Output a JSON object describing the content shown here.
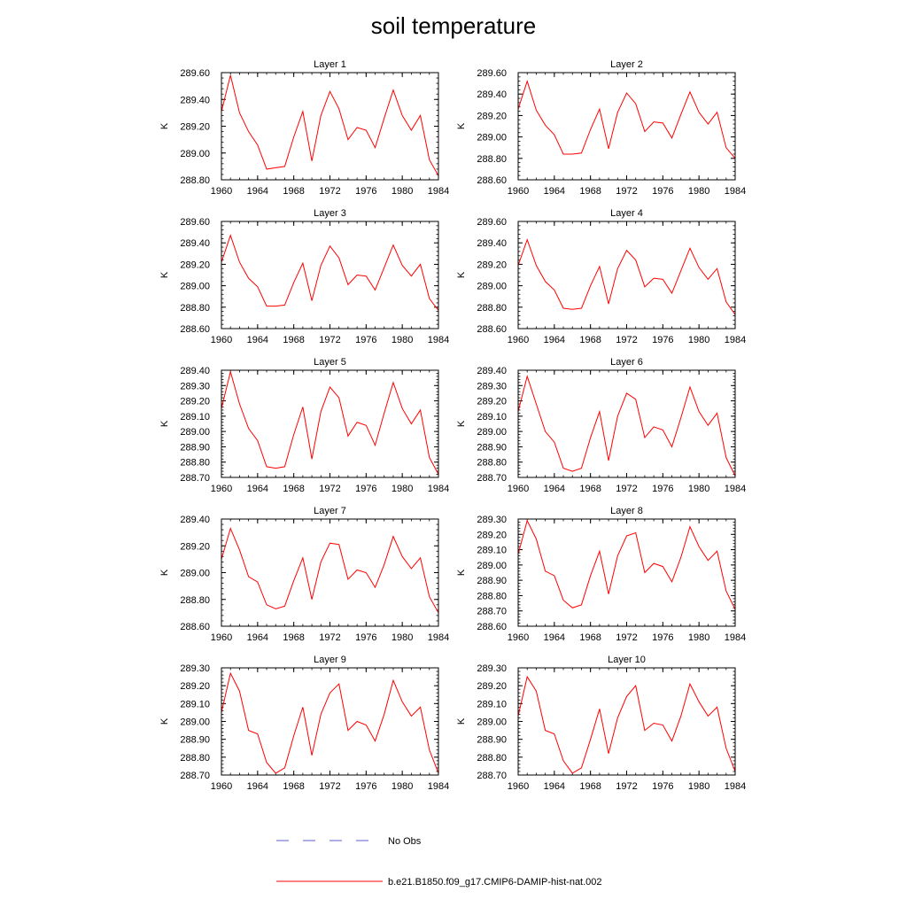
{
  "page": {
    "title": "soil temperature",
    "legend": [
      {
        "label": "No Obs",
        "color": "#5b5bd6",
        "style": "dashed"
      },
      {
        "label": "b.e21.B1850.f09_g17.CMIP6-DAMIP-hist-nat.002",
        "color": "#ff0000",
        "style": "solid"
      }
    ]
  },
  "chart_data": [
    {
      "type": "line",
      "title": "Layer 1",
      "ylabel": "K",
      "xlim": [
        1960,
        1984
      ],
      "ylim": [
        288.8,
        289.6
      ],
      "x_ticks": [
        "1960",
        "1964",
        "1968",
        "1972",
        "1976",
        "1980",
        "1984"
      ],
      "y_ticks": [
        "288.80",
        "289.00",
        "289.20",
        "289.40",
        "289.60"
      ],
      "x": [
        1960,
        1961,
        1962,
        1963,
        1964,
        1965,
        1966,
        1967,
        1968,
        1969,
        1970,
        1971,
        1972,
        1973,
        1974,
        1975,
        1976,
        1977,
        1978,
        1979,
        1980,
        1981,
        1982,
        1983,
        1984
      ],
      "series": [
        {
          "color": "#ff0000",
          "values": [
            289.31,
            289.58,
            289.3,
            289.16,
            289.06,
            288.88,
            288.89,
            288.9,
            289.12,
            289.31,
            288.94,
            289.28,
            289.46,
            289.33,
            289.1,
            289.19,
            289.17,
            289.04,
            289.26,
            289.47,
            289.28,
            289.17,
            289.28,
            288.95,
            288.83
          ]
        }
      ]
    },
    {
      "type": "line",
      "title": "Layer 2",
      "ylabel": "K",
      "xlim": [
        1960,
        1984
      ],
      "ylim": [
        288.6,
        289.6
      ],
      "x_ticks": [
        "1960",
        "1964",
        "1968",
        "1972",
        "1976",
        "1980",
        "1984"
      ],
      "y_ticks": [
        "288.60",
        "288.80",
        "289.00",
        "289.20",
        "289.40",
        "289.60"
      ],
      "x": [
        1960,
        1961,
        1962,
        1963,
        1964,
        1965,
        1966,
        1967,
        1968,
        1969,
        1970,
        1971,
        1972,
        1973,
        1974,
        1975,
        1976,
        1977,
        1978,
        1979,
        1980,
        1981,
        1982,
        1983,
        1984
      ],
      "series": [
        {
          "color": "#ff0000",
          "values": [
            289.26,
            289.52,
            289.25,
            289.11,
            289.02,
            288.84,
            288.84,
            288.85,
            289.07,
            289.26,
            288.89,
            289.23,
            289.41,
            289.31,
            289.05,
            289.14,
            289.13,
            288.99,
            289.21,
            289.42,
            289.23,
            289.12,
            289.23,
            288.9,
            288.8
          ]
        }
      ]
    },
    {
      "type": "line",
      "title": "Layer 3",
      "ylabel": "K",
      "xlim": [
        1960,
        1984
      ],
      "ylim": [
        288.6,
        289.6
      ],
      "x_ticks": [
        "1960",
        "1964",
        "1968",
        "1972",
        "1976",
        "1980",
        "1984"
      ],
      "y_ticks": [
        "288.60",
        "288.80",
        "289.00",
        "289.20",
        "289.40",
        "289.60"
      ],
      "x": [
        1960,
        1961,
        1962,
        1963,
        1964,
        1965,
        1966,
        1967,
        1968,
        1969,
        1970,
        1971,
        1972,
        1973,
        1974,
        1975,
        1976,
        1977,
        1978,
        1979,
        1980,
        1981,
        1982,
        1983,
        1984
      ],
      "series": [
        {
          "color": "#ff0000",
          "values": [
            289.22,
            289.47,
            289.22,
            289.07,
            288.99,
            288.81,
            288.81,
            288.82,
            289.03,
            289.21,
            288.86,
            289.19,
            289.37,
            289.26,
            289.01,
            289.1,
            289.09,
            288.96,
            289.17,
            289.38,
            289.19,
            289.09,
            289.2,
            288.88,
            288.77
          ]
        }
      ]
    },
    {
      "type": "line",
      "title": "Layer 4",
      "ylabel": "K",
      "xlim": [
        1960,
        1984
      ],
      "ylim": [
        288.6,
        289.6
      ],
      "x_ticks": [
        "1960",
        "1964",
        "1968",
        "1972",
        "1976",
        "1980",
        "1984"
      ],
      "y_ticks": [
        "288.60",
        "288.80",
        "289.00",
        "289.20",
        "289.40",
        "289.60"
      ],
      "x": [
        1960,
        1961,
        1962,
        1963,
        1964,
        1965,
        1966,
        1967,
        1968,
        1969,
        1970,
        1971,
        1972,
        1973,
        1974,
        1975,
        1976,
        1977,
        1978,
        1979,
        1980,
        1981,
        1982,
        1983,
        1984
      ],
      "series": [
        {
          "color": "#ff0000",
          "values": [
            289.19,
            289.43,
            289.19,
            289.04,
            288.96,
            288.79,
            288.78,
            288.79,
            289.0,
            289.18,
            288.83,
            289.16,
            289.33,
            289.24,
            288.99,
            289.07,
            289.06,
            288.93,
            289.14,
            289.35,
            289.17,
            289.06,
            289.16,
            288.85,
            288.73
          ]
        }
      ]
    },
    {
      "type": "line",
      "title": "Layer 5",
      "ylabel": "K",
      "xlim": [
        1960,
        1984
      ],
      "ylim": [
        288.7,
        289.4
      ],
      "x_ticks": [
        "1960",
        "1964",
        "1968",
        "1972",
        "1976",
        "1980",
        "1984"
      ],
      "y_ticks": [
        "288.70",
        "288.80",
        "288.90",
        "289.00",
        "289.10",
        "289.20",
        "289.30",
        "289.40"
      ],
      "x": [
        1960,
        1961,
        1962,
        1963,
        1964,
        1965,
        1966,
        1967,
        1968,
        1969,
        1970,
        1971,
        1972,
        1973,
        1974,
        1975,
        1976,
        1977,
        1978,
        1979,
        1980,
        1981,
        1982,
        1983,
        1984
      ],
      "series": [
        {
          "color": "#ff0000",
          "values": [
            289.15,
            289.39,
            289.18,
            289.02,
            288.94,
            288.77,
            288.76,
            288.77,
            288.98,
            289.16,
            288.82,
            289.13,
            289.29,
            289.22,
            288.97,
            289.06,
            289.04,
            288.91,
            289.12,
            289.32,
            289.15,
            289.05,
            289.14,
            288.83,
            288.72
          ]
        }
      ]
    },
    {
      "type": "line",
      "title": "Layer 6",
      "ylabel": "K",
      "xlim": [
        1960,
        1984
      ],
      "ylim": [
        288.7,
        289.4
      ],
      "x_ticks": [
        "1960",
        "1964",
        "1968",
        "1972",
        "1976",
        "1980",
        "1984"
      ],
      "y_ticks": [
        "288.70",
        "288.80",
        "288.90",
        "289.00",
        "289.10",
        "289.20",
        "289.30",
        "289.40"
      ],
      "x": [
        1960,
        1961,
        1962,
        1963,
        1964,
        1965,
        1966,
        1967,
        1968,
        1969,
        1970,
        1971,
        1972,
        1973,
        1974,
        1975,
        1976,
        1977,
        1978,
        1979,
        1980,
        1981,
        1982,
        1983,
        1984
      ],
      "series": [
        {
          "color": "#ff0000",
          "values": [
            289.13,
            289.36,
            289.18,
            289.0,
            288.93,
            288.76,
            288.74,
            288.76,
            288.96,
            289.13,
            288.81,
            289.1,
            289.25,
            289.21,
            288.96,
            289.03,
            289.01,
            288.9,
            289.09,
            289.29,
            289.13,
            289.04,
            289.12,
            288.83,
            288.71
          ]
        }
      ]
    },
    {
      "type": "line",
      "title": "Layer 7",
      "ylabel": "K",
      "xlim": [
        1960,
        1984
      ],
      "ylim": [
        288.6,
        289.4
      ],
      "x_ticks": [
        "1960",
        "1964",
        "1968",
        "1972",
        "1976",
        "1980",
        "1984"
      ],
      "y_ticks": [
        "288.60",
        "288.80",
        "289.00",
        "289.20",
        "289.40"
      ],
      "x": [
        1960,
        1961,
        1962,
        1963,
        1964,
        1965,
        1966,
        1967,
        1968,
        1969,
        1970,
        1971,
        1972,
        1973,
        1974,
        1975,
        1976,
        1977,
        1978,
        1979,
        1980,
        1981,
        1982,
        1983,
        1984
      ],
      "series": [
        {
          "color": "#ff0000",
          "values": [
            289.1,
            289.33,
            289.17,
            288.97,
            288.93,
            288.76,
            288.73,
            288.75,
            288.94,
            289.11,
            288.8,
            289.08,
            289.22,
            289.21,
            288.95,
            289.02,
            289.0,
            288.89,
            289.06,
            289.27,
            289.12,
            289.03,
            289.11,
            288.82,
            288.7
          ]
        }
      ]
    },
    {
      "type": "line",
      "title": "Layer 8",
      "ylabel": "K",
      "xlim": [
        1960,
        1984
      ],
      "ylim": [
        288.6,
        289.3
      ],
      "x_ticks": [
        "1960",
        "1964",
        "1968",
        "1972",
        "1976",
        "1980",
        "1984"
      ],
      "y_ticks": [
        "288.60",
        "288.70",
        "288.80",
        "288.90",
        "289.00",
        "289.10",
        "289.20",
        "289.30"
      ],
      "x": [
        1960,
        1961,
        1962,
        1963,
        1964,
        1965,
        1966,
        1967,
        1968,
        1969,
        1970,
        1971,
        1972,
        1973,
        1974,
        1975,
        1976,
        1977,
        1978,
        1979,
        1980,
        1981,
        1982,
        1983,
        1984
      ],
      "series": [
        {
          "color": "#ff0000",
          "values": [
            289.07,
            289.29,
            289.17,
            288.96,
            288.93,
            288.77,
            288.72,
            288.74,
            288.93,
            289.09,
            288.81,
            289.06,
            289.19,
            289.21,
            288.95,
            289.01,
            288.99,
            288.89,
            289.05,
            289.25,
            289.12,
            289.03,
            289.09,
            288.83,
            288.71
          ]
        }
      ]
    },
    {
      "type": "line",
      "title": "Layer 9",
      "ylabel": "K",
      "xlim": [
        1960,
        1984
      ],
      "ylim": [
        288.7,
        289.3
      ],
      "x_ticks": [
        "1960",
        "1964",
        "1968",
        "1972",
        "1976",
        "1980",
        "1984"
      ],
      "y_ticks": [
        "288.70",
        "288.80",
        "288.90",
        "289.00",
        "289.10",
        "289.20",
        "289.30"
      ],
      "x": [
        1960,
        1961,
        1962,
        1963,
        1964,
        1965,
        1966,
        1967,
        1968,
        1969,
        1970,
        1971,
        1972,
        1973,
        1974,
        1975,
        1976,
        1977,
        1978,
        1979,
        1980,
        1981,
        1982,
        1983,
        1984
      ],
      "series": [
        {
          "color": "#ff0000",
          "values": [
            289.05,
            289.27,
            289.17,
            288.95,
            288.93,
            288.77,
            288.71,
            288.74,
            288.92,
            289.08,
            288.81,
            289.04,
            289.16,
            289.21,
            288.95,
            289.0,
            288.98,
            288.89,
            289.04,
            289.23,
            289.11,
            289.03,
            289.08,
            288.84,
            288.71
          ]
        }
      ]
    },
    {
      "type": "line",
      "title": "Layer 10",
      "ylabel": "K",
      "xlim": [
        1960,
        1984
      ],
      "ylim": [
        288.7,
        289.3
      ],
      "x_ticks": [
        "1960",
        "1964",
        "1968",
        "1972",
        "1976",
        "1980",
        "1984"
      ],
      "y_ticks": [
        "288.70",
        "288.80",
        "288.90",
        "289.00",
        "289.10",
        "289.20",
        "289.30"
      ],
      "x": [
        1960,
        1961,
        1962,
        1963,
        1964,
        1965,
        1966,
        1967,
        1968,
        1969,
        1970,
        1971,
        1972,
        1973,
        1974,
        1975,
        1976,
        1977,
        1978,
        1979,
        1980,
        1981,
        1982,
        1983,
        1984
      ],
      "series": [
        {
          "color": "#ff0000",
          "values": [
            289.03,
            289.25,
            289.17,
            288.95,
            288.93,
            288.78,
            288.71,
            288.74,
            288.9,
            289.07,
            288.82,
            289.02,
            289.14,
            289.2,
            288.95,
            288.99,
            288.98,
            288.89,
            289.03,
            289.21,
            289.11,
            289.03,
            289.08,
            288.85,
            288.72
          ]
        }
      ]
    }
  ]
}
